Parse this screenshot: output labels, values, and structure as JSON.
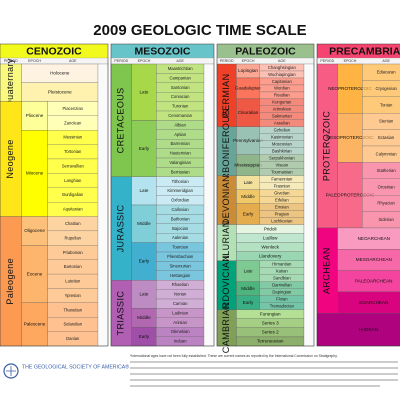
{
  "title": "2009 GEOLOGIC TIME SCALE",
  "column_labels": [
    "PERIOD",
    "EPOCH",
    "AGE"
  ],
  "footer": {
    "society": "THE GEOLOGICAL SOCIETY OF AMERICA®",
    "note": "*International ages have not been fully established. These are current names as reported by the International Commission on Stratigraphy."
  },
  "eras": [
    {
      "name": "CENOZOIC",
      "color": "#f2f91d",
      "periods": [
        {
          "name": "Quaternary",
          "color": "#f9f97f",
          "epochs": [
            {
              "name": "Holocene",
              "color": "#fef2e0",
              "stages": []
            },
            {
              "name": "Pleistocene",
              "color": "#fff2ae",
              "stages": []
            }
          ]
        },
        {
          "name": "Neogene",
          "color": "#ffe619",
          "epochs": [
            {
              "name": "Pliocene",
              "color": "#ffff99",
              "stages": [
                "Piacenzian",
                "Zanclean"
              ]
            },
            {
              "name": "Miocene",
              "color": "#ffff00",
              "stages": [
                "Messinian",
                "Tortonian",
                "Serravallian",
                "Langhian",
                "Burdigalian",
                "Aquitanian"
              ]
            }
          ]
        },
        {
          "name": "Paleogene",
          "color": "#fd9a52",
          "epochs": [
            {
              "name": "Oligocene",
              "color": "#fdc07a",
              "stages": [
                "Chattian",
                "Rupelian"
              ]
            },
            {
              "name": "Eocene",
              "color": "#fdb46c",
              "stages": [
                "Priabonian",
                "Bartonian",
                "Lutetian",
                "Ypresian"
              ]
            },
            {
              "name": "Paleocene",
              "color": "#fda75f",
              "stages": [
                "Thanetian",
                "Selandian",
                "Danian"
              ]
            }
          ]
        }
      ]
    },
    {
      "name": "MESOZOIC",
      "color": "#67c5ca",
      "periods": [
        {
          "name": "CRETACEOUS",
          "color": "#7fc64e",
          "epochs": [
            {
              "name": "Late",
              "color": "#a6d84a",
              "stages": [
                "Maastrichtian",
                "Campanian",
                "Santonian",
                "Coniacian",
                "Turonian",
                "Cenomanian"
              ]
            },
            {
              "name": "Early",
              "color": "#8ccd57",
              "stages": [
                "Albian",
                "Aptian",
                "Barremian",
                "Hauterivian",
                "Valanginian",
                "Berriasian"
              ]
            }
          ]
        },
        {
          "name": "JURASSIC",
          "color": "#34b2c9",
          "epochs": [
            {
              "name": "Late",
              "color": "#b3e3ee",
              "stages": [
                "Tithonian",
                "Kimmeridgian",
                "Oxfordian"
              ]
            },
            {
              "name": "Middle",
              "color": "#80cfd8",
              "stages": [
                "Callovian",
                "Bathonian",
                "Bajocian",
                "Aalenian"
              ]
            },
            {
              "name": "Early",
              "color": "#42aed0",
              "stages": [
                "Toarcian",
                "Pliensbachian",
                "Sinemurian",
                "Hettangian"
              ]
            }
          ]
        },
        {
          "name": "TRIASSIC",
          "color": "#b05fb3",
          "epochs": [
            {
              "name": "Late",
              "color": "#bd8cc3",
              "stages": [
                "Rhaetian",
                "Norian",
                "Carnian"
              ]
            },
            {
              "name": "Middle",
              "color": "#b168b1",
              "stages": [
                "Ladinian",
                "Anisian"
              ]
            },
            {
              "name": "Early",
              "color": "#a04fa8",
              "stages": [
                "Olenekian",
                "Induan"
              ]
            }
          ]
        }
      ]
    },
    {
      "name": "PALEOZOIC",
      "color": "#99c08d",
      "periods": [
        {
          "name": "PERMIAN",
          "color": "#f04028",
          "epochs": [
            {
              "name": "Lopingian",
              "color": "#fba794",
              "stages": [
                "Changhsingian",
                "Wuchiapingian"
              ]
            },
            {
              "name": "Guadalupian",
              "color": "#fb745c",
              "stages": [
                "Capitanian",
                "Wordian",
                "Roadian"
              ]
            },
            {
              "name": "Cisuralian",
              "color": "#ef5845",
              "stages": [
                "Kungurian",
                "Artinskian",
                "Sakmarian",
                "Asselian"
              ]
            }
          ]
        },
        {
          "name": "CARBONIFEROUS",
          "color": "#67a599",
          "epochs": [
            {
              "name": "Pennsylvanian",
              "color": "#99c2b5",
              "stages": [
                "Gzhelian",
                "Kasimovian",
                "Moscovian",
                "Bashkirian"
              ]
            },
            {
              "name": "Mississippian",
              "color": "#8fb58a",
              "stages": [
                "Serpukhovian",
                "Visean",
                "Tournaisian"
              ]
            }
          ]
        },
        {
          "name": "DEVONIAN",
          "color": "#cb8c37",
          "epochs": [
            {
              "name": "Late",
              "color": "#f1e19d",
              "stages": [
                "Famennian",
                "Frasnian"
              ]
            },
            {
              "name": "Middle",
              "color": "#f1c868",
              "stages": [
                "Givetian",
                "Eifelian"
              ]
            },
            {
              "name": "Early",
              "color": "#e5ac4d",
              "stages": [
                "Emsian",
                "Pragian",
                "Lochkovian"
              ]
            }
          ]
        },
        {
          "name": "SILURIAN",
          "color": "#b3e1b6",
          "epochs": [
            {
              "name": "Pridoli",
              "color": "#e6f5e1",
              "stages": []
            },
            {
              "name": "Ludlow",
              "color": "#bfe6cf",
              "stages": []
            },
            {
              "name": "Wenlock",
              "color": "#b3e1c2",
              "stages": []
            },
            {
              "name": "Llandovery",
              "color": "#99d7b3",
              "stages": []
            }
          ]
        },
        {
          "name": "ORDOVICIAN",
          "color": "#00a27a",
          "epochs": [
            {
              "name": "Late",
              "color": "#7fca93",
              "stages": [
                "Hirnantian",
                "Katian",
                "Sandbian"
              ]
            },
            {
              "name": "Middle",
              "color": "#4db47e",
              "stages": [
                "Darriwilian",
                "Dapingian"
              ]
            },
            {
              "name": "Early",
              "color": "#3aae84",
              "stages": [
                "Floian",
                "Tremadocian"
              ]
            }
          ]
        },
        {
          "name": "CAMBRIAN",
          "color": "#7fa056",
          "epochs": [
            {
              "name": "Furongian",
              "color": "#b3e095",
              "stages": []
            },
            {
              "name": "Series 3",
              "color": "#a6cf86",
              "stages": []
            },
            {
              "name": "Series 2",
              "color": "#99c078",
              "stages": []
            },
            {
              "name": "Terreneuvian",
              "color": "#8cb06c",
              "stages": []
            }
          ]
        }
      ]
    },
    {
      "name": "PRECAMBRIAN",
      "color": "#f74370",
      "periods": [
        {
          "name": "PROTEROZOIC",
          "color": "#f75c85",
          "epochs": [
            {
              "name": "NEOPROTEROZOIC",
              "color": "#feb342",
              "stages": [
                "Ediacaran",
                "Cryogenian",
                "Tonian"
              ]
            },
            {
              "name": "MESOPROTEROZOIC",
              "color": "#fdb462",
              "stages": [
                "Stenian",
                "Ectasian",
                "Calymmian"
              ]
            },
            {
              "name": "PALEOPROTEROZOIC",
              "color": "#f76a8a",
              "stages": [
                "Statherian",
                "Orosirian",
                "Rhyacian",
                "Siderian"
              ]
            }
          ]
        },
        {
          "name": "ARCHEAN",
          "color": "#f0047f",
          "epochs": [
            {
              "name": "NEOARCHEAN",
              "color": "#f99bc1",
              "stages": []
            },
            {
              "name": "MESOARCHEAN",
              "color": "#f768a9",
              "stages": []
            },
            {
              "name": "PALEOARCHEAN",
              "color": "#f4449f",
              "stages": []
            },
            {
              "name": "EOARCHEAN",
              "color": "#da037f",
              "stages": []
            }
          ]
        },
        {
          "name": "HADEAN",
          "color": "#ae027e",
          "epochs": []
        }
      ]
    }
  ]
}
